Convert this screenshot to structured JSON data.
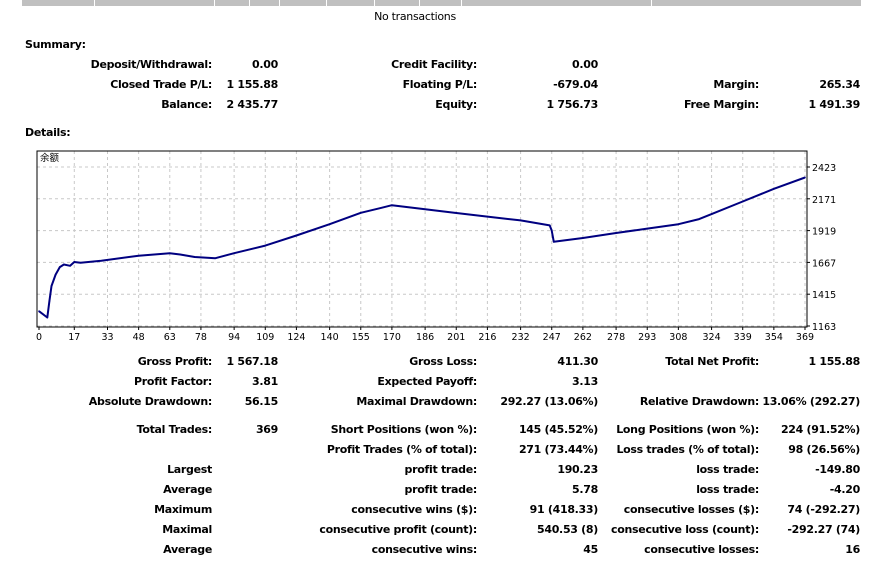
{
  "transactions": {
    "empty_text": "No transactions"
  },
  "summary": {
    "title": "Summary:",
    "rows": [
      [
        {
          "label": "Deposit/Withdrawal:",
          "value": "0.00"
        },
        {
          "label": "Credit Facility:",
          "value": "0.00"
        },
        null
      ],
      [
        {
          "label": "Closed Trade P/L:",
          "value": "1 155.88"
        },
        {
          "label": "Floating P/L:",
          "value": "-679.04"
        },
        {
          "label": "Margin:",
          "value": "265.34"
        }
      ],
      [
        {
          "label": "Balance:",
          "value": "2 435.77"
        },
        {
          "label": "Equity:",
          "value": "1 756.73"
        },
        {
          "label": "Free Margin:",
          "value": "1 491.39"
        }
      ]
    ]
  },
  "details": {
    "title": "Details:",
    "rows": [
      [
        {
          "label": "Gross Profit:",
          "value": "1 567.18"
        },
        {
          "label": "Gross Loss:",
          "value": "411.30"
        },
        {
          "label": "Total Net Profit:",
          "value": "1 155.88"
        }
      ],
      [
        {
          "label": "Profit Factor:",
          "value": "3.81"
        },
        {
          "label": "Expected Payoff:",
          "value": "3.13"
        },
        null
      ],
      [
        {
          "label": "Absolute Drawdown:",
          "value": "56.15"
        },
        {
          "label": "Maximal Drawdown:",
          "value": "292.27 (13.06%)"
        },
        {
          "label": "Relative Drawdown:",
          "value": "13.06% (292.27)"
        }
      ],
      [
        {
          "label": "Total Trades:",
          "value": "369"
        },
        {
          "label": "Short Positions (won %):",
          "value": "145 (45.52%)"
        },
        {
          "label": "Long Positions (won %):",
          "value": "224 (91.52%)"
        }
      ],
      [
        null,
        {
          "label": "Profit Trades (% of total):",
          "value": "271 (73.44%)"
        },
        {
          "label": "Loss trades (% of total):",
          "value": "98 (26.56%)"
        }
      ],
      [
        {
          "label": "Largest",
          "value": ""
        },
        {
          "label": "profit trade:",
          "value": "190.23"
        },
        {
          "label": "loss trade:",
          "value": "-149.80"
        }
      ],
      [
        {
          "label": "Average",
          "value": ""
        },
        {
          "label": "profit trade:",
          "value": "5.78"
        },
        {
          "label": "loss trade:",
          "value": "-4.20"
        }
      ],
      [
        {
          "label": "Maximum",
          "value": ""
        },
        {
          "label": "consecutive wins ($):",
          "value": "91 (418.33)"
        },
        {
          "label": "consecutive losses ($):",
          "value": "74 (-292.27)"
        }
      ],
      [
        {
          "label": "Maximal",
          "value": ""
        },
        {
          "label": "consecutive profit (count):",
          "value": "540.53 (8)"
        },
        {
          "label": "consecutive loss (count):",
          "value": "-292.27 (74)"
        }
      ],
      [
        {
          "label": "Average",
          "value": ""
        },
        {
          "label": "consecutive wins:",
          "value": "45"
        },
        {
          "label": "consecutive losses:",
          "value": "16"
        }
      ]
    ]
  },
  "chart_data": {
    "type": "line",
    "title": "余额",
    "xlabel": "",
    "ylabel": "",
    "x_ticks": [
      0,
      17,
      33,
      48,
      63,
      78,
      94,
      109,
      124,
      140,
      155,
      170,
      186,
      201,
      216,
      232,
      247,
      262,
      278,
      293,
      308,
      324,
      339,
      354,
      369
    ],
    "y_ticks": [
      1163,
      1415,
      1667,
      1919,
      2171,
      2423
    ],
    "xlim": [
      0,
      370
    ],
    "ylim": [
      1163,
      2480
    ],
    "grid": true,
    "line_color": "#000080",
    "series": [
      {
        "name": "余额",
        "x": [
          0,
          4,
          5,
          6,
          8,
          10,
          12,
          15,
          17,
          20,
          30,
          48,
          63,
          68,
          75,
          85,
          94,
          109,
          124,
          140,
          155,
          165,
          170,
          180,
          200,
          216,
          232,
          246,
          247,
          248,
          262,
          278,
          293,
          308,
          318,
          324,
          339,
          354,
          369
        ],
        "y": [
          1280,
          1230,
          1360,
          1480,
          1570,
          1630,
          1650,
          1640,
          1670,
          1665,
          1680,
          1720,
          1740,
          1730,
          1710,
          1700,
          1740,
          1800,
          1880,
          1970,
          2060,
          2100,
          2120,
          2100,
          2060,
          2030,
          2000,
          1960,
          1920,
          1830,
          1860,
          1900,
          1935,
          1970,
          2010,
          2050,
          2150,
          2250,
          2340
        ]
      }
    ]
  }
}
